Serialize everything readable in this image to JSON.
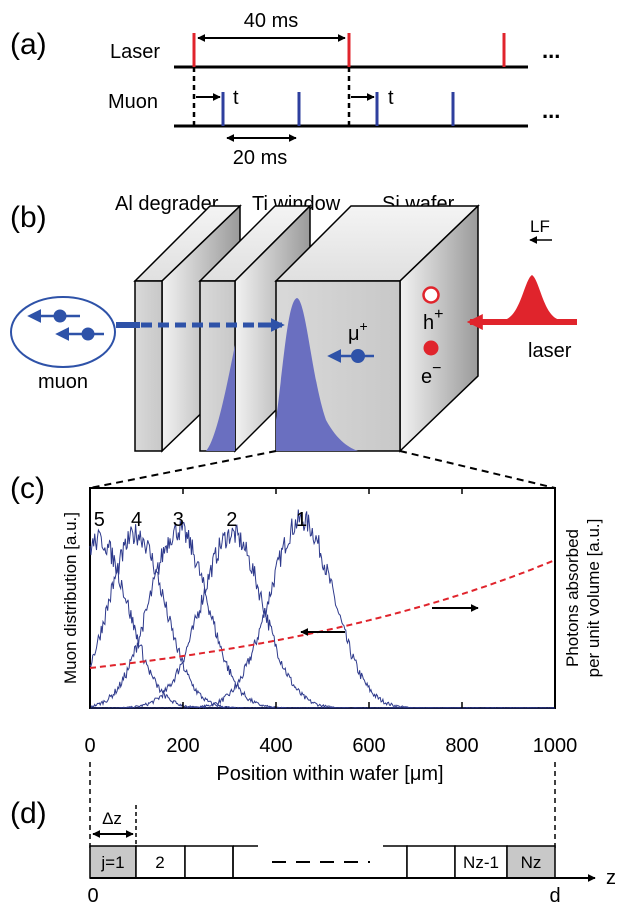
{
  "panel_a": {
    "label": "(a)",
    "laser_label": "Laser",
    "muon_label": "Muon",
    "period_label": "40 ms",
    "muon_period_label": "20 ms",
    "delay_label": "t",
    "ellipsis": "...",
    "laser_color": "#e0242c",
    "muon_color": "#2e3f9e"
  },
  "panel_b": {
    "label": "(b)",
    "degrader_label": "Al degrader",
    "window_label": "Ti window",
    "wafer_label": "Si wafer",
    "field_label": "LF",
    "muon_label": "muon",
    "laser_label": "laser",
    "muon_symbol": "μ",
    "muon_charge": "+",
    "hole_symbol": "h",
    "hole_charge": "+",
    "electron_symbol": "e",
    "electron_charge": "−",
    "distribution_color": "#6a6fc0"
  },
  "panel_c": {
    "label": "(c)",
    "xlabel": "Position within wafer [μm]",
    "ylabel_left": "Muon distribution [a.u.]",
    "ylabel_right_1": "Photons absorbed",
    "ylabel_right_2": "per unit volume [a.u.]",
    "x_ticks": [
      "0",
      "200",
      "400",
      "600",
      "800",
      "1000"
    ],
    "peak_labels": [
      "5",
      "4",
      "3",
      "2",
      "1"
    ]
  },
  "chart_data": {
    "type": "line",
    "xlabel": "Position within wafer [μm]",
    "ylabel": "Muon distribution [a.u.]",
    "xlim": [
      0,
      1000
    ],
    "ylim": [
      0,
      1.1
    ],
    "x_ticks": [
      0,
      200,
      400,
      600,
      800,
      1000
    ],
    "series": [
      {
        "label": "1",
        "center": 455,
        "sigma": 68,
        "amplitude": 0.94
      },
      {
        "label": "2",
        "center": 305,
        "sigma": 66,
        "amplitude": 0.87
      },
      {
        "label": "3",
        "center": 190,
        "sigma": 62,
        "amplitude": 0.89
      },
      {
        "label": "4",
        "center": 100,
        "sigma": 60,
        "amplitude": 0.87
      },
      {
        "label": "5",
        "center": 20,
        "sigma": 62,
        "amplitude": 0.84
      }
    ],
    "absorption": {
      "x": [
        0,
        200,
        400,
        600,
        800,
        1000
      ],
      "y": [
        0.2,
        0.25,
        0.32,
        0.43,
        0.57,
        0.74
      ]
    },
    "line_color": "#2e3a8c",
    "absorption_color": "#e0242c"
  },
  "panel_d": {
    "label": "(d)",
    "dz_label": "Δz",
    "cells": [
      "j=1",
      "2",
      "",
      "",
      "Nz-1",
      "Nz"
    ],
    "origin_label": "0",
    "end_label": "d",
    "axis_label": "z"
  }
}
